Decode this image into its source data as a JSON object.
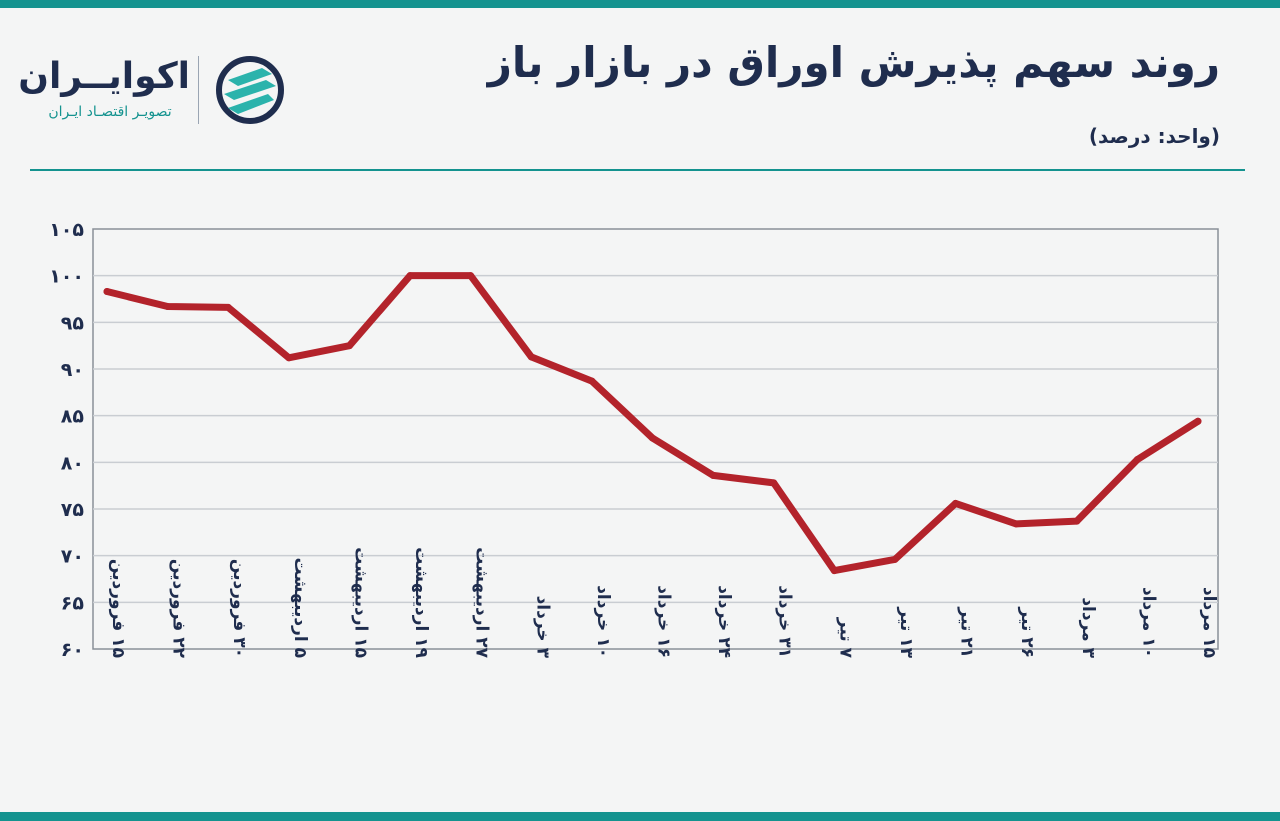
{
  "header": {
    "title": "روند سهم پذیرش اوراق در بازار باز",
    "unit": "(واحد: درصد)"
  },
  "logo": {
    "name": "اکوایــران",
    "tagline": "تصویـر اقتصـاد ایـران"
  },
  "colors": {
    "accent": "#14938f",
    "line": "#b3232b",
    "text": "#1f2d4e",
    "grid": "#c9cdd2"
  },
  "chart_data": {
    "type": "line",
    "title": "روند سهم پذیرش اوراق در بازار باز",
    "xlabel": "",
    "ylabel": "",
    "ylim": [
      60,
      105
    ],
    "y_ticks": [
      60,
      65,
      70,
      75,
      80,
      85,
      90,
      95,
      100,
      105
    ],
    "y_tick_labels": [
      "۶۰",
      "۶۵",
      "۷۰",
      "۷۵",
      "۸۰",
      "۸۵",
      "۹۰",
      "۹۵",
      "۱۰۰",
      "۱۰۵"
    ],
    "grid": true,
    "categories": [
      "۱۵ فروردین",
      "۲۲ فروردین",
      "۳۰ فروردین",
      "۵ اردیبهشت",
      "۱۵ اردیبهشت",
      "۱۹ اردیبهشت",
      "۲۷ اردیبهشت",
      "۳ خرداد",
      "۱۰ خرداد",
      "۱۶ خرداد",
      "۲۴ خرداد",
      "۳۱ خرداد",
      "۷ تیر",
      "۱۳ تیر",
      "۲۱ تیر",
      "۲۶ تیر",
      "۳ مرداد",
      "۱۰ مرداد",
      "۱۵ مرداد"
    ],
    "series": [
      {
        "name": "سهم پذیرش اوراق",
        "values": [
          98.3,
          96.7,
          96.6,
          91.2,
          92.5,
          100.0,
          100.0,
          91.3,
          88.7,
          82.6,
          78.6,
          77.8,
          68.4,
          69.6,
          75.6,
          73.4,
          73.7,
          80.3,
          84.4
        ]
      }
    ]
  }
}
